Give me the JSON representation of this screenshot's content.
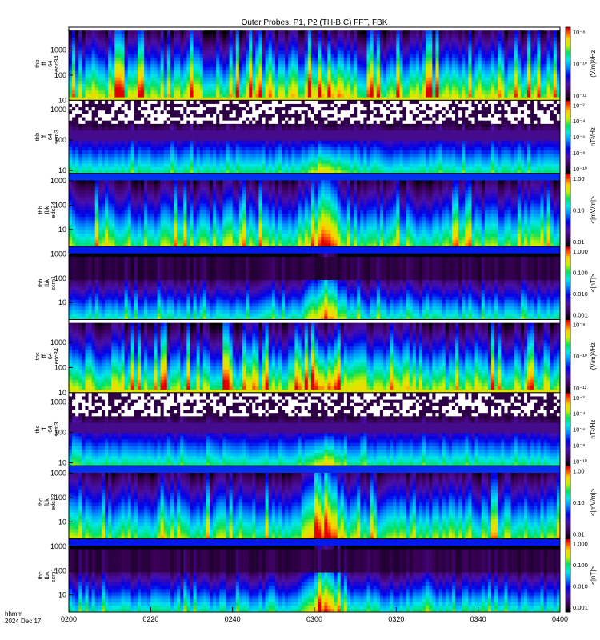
{
  "chart_data": {
    "type": "heatmap",
    "title": "Outer Probes: P1, P2 (TH-B,C) FFT, FBK",
    "x_ticks": [
      "0200",
      "0220",
      "0240",
      "0300",
      "0320",
      "0340",
      "0400"
    ],
    "x_range": [
      "0200",
      "0400"
    ],
    "corner_label": "hhmm",
    "date_label": "2024 Dec 17",
    "panels": [
      {
        "id": "thb-ffp-e",
        "ylabel": [
          "thb",
          "ff",
          "64",
          "edc34"
        ],
        "yscale": "log",
        "yrange": [
          10,
          8000
        ],
        "yticks": [
          "1000",
          "100",
          "10"
        ],
        "cbar_title": "(V/m)²/Hz",
        "cbar_ticks": [
          "10⁻⁸",
          "10⁻¹⁰",
          "10⁻¹²"
        ],
        "cbar_range_exp": [
          -13,
          -7.5
        ],
        "kind": "ffp_e",
        "event": 0.02
      },
      {
        "id": "thb-ffp-b",
        "ylabel": [
          "thb",
          "ff",
          "64",
          "scm3"
        ],
        "yscale": "log",
        "yrange": [
          8,
          2000
        ],
        "yticks": [
          "1000",
          "100",
          "10"
        ],
        "cbar_title": "nT²/Hz",
        "cbar_ticks": [
          "10⁻²",
          "10⁻⁴",
          "10⁻⁶",
          "10⁻⁸",
          "10⁻¹⁰"
        ],
        "cbar_range_exp": [
          -10,
          -1.5
        ],
        "kind": "ffp_b",
        "event": 0.05
      },
      {
        "id": "thb-fbk-e",
        "ylabel": [
          "thb",
          "fbk",
          "edc34"
        ],
        "yscale": "log",
        "yrange": [
          2,
          2000
        ],
        "yticks": [
          "1000",
          "100",
          "10"
        ],
        "cbar_title": "<|mV/m|>",
        "cbar_ticks": [
          "1.00",
          "0.10",
          "0.01"
        ],
        "cbar_range_exp": [
          -2.4,
          0.3
        ],
        "kind": "fbk_e",
        "event": 0.1
      },
      {
        "id": "thb-fbk-b",
        "ylabel": [
          "thb",
          "fbk",
          "scm1"
        ],
        "yscale": "log",
        "yrange": [
          2,
          2000
        ],
        "yticks": [
          "1000",
          "100",
          "10"
        ],
        "cbar_title": "<|nT|>",
        "cbar_ticks": [
          "1.000",
          "0.100",
          "0.010",
          "0.001"
        ],
        "cbar_range_exp": [
          -3.2,
          0.1
        ],
        "kind": "fbk_b",
        "event": 0.2
      },
      {
        "id": "thc-ffp-e",
        "ylabel": [
          "thc",
          "ff",
          "64",
          "edc34"
        ],
        "yscale": "log",
        "yrange": [
          10,
          8000
        ],
        "yticks": [
          "1000",
          "100",
          "10"
        ],
        "cbar_title": "(V/m)²/Hz",
        "cbar_ticks": [
          "10⁻⁸",
          "10⁻¹⁰",
          "10⁻¹²"
        ],
        "cbar_range_exp": [
          -13,
          -7.5
        ],
        "kind": "ffp_e",
        "event": 0.02
      },
      {
        "id": "thc-ffp-b",
        "ylabel": [
          "thc",
          "ff",
          "64",
          "scm3"
        ],
        "yscale": "log",
        "yrange": [
          8,
          2000
        ],
        "yticks": [
          "1000",
          "100",
          "10"
        ],
        "cbar_title": "nT²/Hz",
        "cbar_ticks": [
          "10⁻²",
          "10⁻⁴",
          "10⁻⁶",
          "10⁻⁸",
          "10⁻¹⁰"
        ],
        "cbar_range_exp": [
          -10,
          -1.5
        ],
        "kind": "ffp_b",
        "event": 0.05
      },
      {
        "id": "thc-fbk-e",
        "ylabel": [
          "thc",
          "fbk",
          "edc12"
        ],
        "yscale": "log",
        "yrange": [
          2,
          2000
        ],
        "yticks": [
          "1000",
          "100",
          "10"
        ],
        "cbar_title": "<|mV/m|>",
        "cbar_ticks": [
          "1.00",
          "0.10",
          "0.01"
        ],
        "cbar_range_exp": [
          -2.4,
          0.3
        ],
        "kind": "fbk_e",
        "event": 0.1
      },
      {
        "id": "thc-fbk-b",
        "ylabel": [
          "thc",
          "fbk",
          "scm1"
        ],
        "yscale": "log",
        "yrange": [
          2,
          2000
        ],
        "yticks": [
          "1000",
          "100",
          "10"
        ],
        "cbar_title": "<|nT|>",
        "cbar_ticks": [
          "1.000",
          "0.100",
          "0.010",
          "0.001"
        ],
        "cbar_range_exp": [
          -3.2,
          0.1
        ],
        "kind": "fbk_b",
        "event": 0.2
      }
    ]
  }
}
